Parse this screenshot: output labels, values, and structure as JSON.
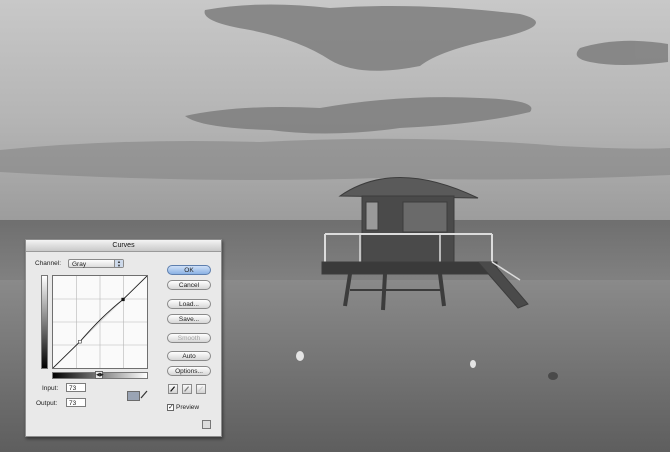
{
  "dialog": {
    "title": "Curves",
    "channel_label": "Channel:",
    "channel_value": "Gray",
    "input_label": "Input:",
    "input_value": "73",
    "output_label": "Output:",
    "output_value": "73",
    "curve_points": [
      {
        "input": 0,
        "output": 0
      },
      {
        "input": 73,
        "output": 73
      },
      {
        "input": 190,
        "output": 190
      },
      {
        "input": 255,
        "output": 255
      }
    ],
    "buttons": {
      "ok": "OK",
      "cancel": "Cancel",
      "load": "Load...",
      "save": "Save...",
      "smooth": "Smooth",
      "auto": "Auto",
      "options": "Options..."
    },
    "preview_label": "Preview",
    "preview_checked": true,
    "icons": {
      "channel_arrows": "up-down-arrows-icon",
      "curve_tool": "curve-point-tool-icon",
      "pencil_tool": "pencil-icon",
      "black_dropper": "black-eyedropper-icon",
      "gray_dropper": "gray-eyedropper-icon",
      "white_dropper": "white-eyedropper-icon",
      "gradient_toggle": "gradient-toggle-icon",
      "resize": "expand-icon"
    }
  },
  "colors": {
    "ok_button": "#8bb2e4",
    "dialog_bg": "#e9e9e9",
    "photo_sky": "#bdbdbd",
    "photo_sand": "#6d6d6d"
  }
}
